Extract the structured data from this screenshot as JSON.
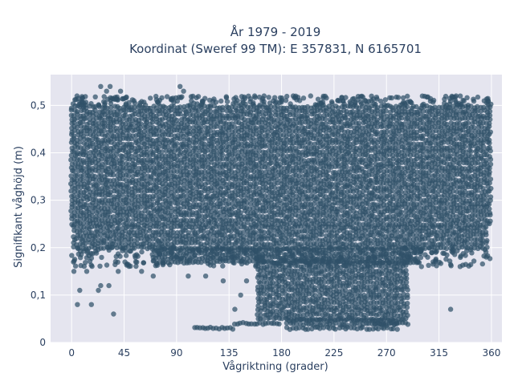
{
  "chart_data": {
    "type": "scatter",
    "title_lines": [
      "År 1979 - 2019",
      "Koordinat (Sweref 99 TM): E 357831, N 6165701"
    ],
    "xlabel": "Vågriktning (grader)",
    "ylabel": "Signifikant våghöjd (m)",
    "xlim": [
      -18,
      369
    ],
    "ylim": [
      0,
      0.565
    ],
    "x_ticks": [
      0,
      45,
      90,
      135,
      180,
      225,
      270,
      315,
      360
    ],
    "x_tick_labels": [
      "0",
      "45",
      "90",
      "135",
      "180",
      "225",
      "270",
      "315",
      "360"
    ],
    "y_ticks": [
      0,
      0.1,
      0.2,
      0.3,
      0.4,
      0.5
    ],
    "y_tick_labels": [
      "0",
      "0,1",
      "0,2",
      "0,3",
      "0,4",
      "0,5"
    ],
    "grid": true,
    "marker_color": "#2f5168",
    "plot_background": "#e5e5ef",
    "dense_regions": [
      {
        "x": [
          0,
          360
        ],
        "y": [
          0.25,
          0.5
        ]
      },
      {
        "x": [
          2,
          358
        ],
        "y": [
          0.2,
          0.25
        ]
      },
      {
        "x": [
          70,
          300
        ],
        "y": [
          0.17,
          0.2
        ]
      },
      {
        "x": [
          160,
          290
        ],
        "y": [
          0.05,
          0.17
        ]
      },
      {
        "x": [
          185,
          280
        ],
        "y": [
          0.03,
          0.05
        ]
      }
    ],
    "outliers": [
      {
        "x": 5,
        "y": 0.08
      },
      {
        "x": 7,
        "y": 0.11
      },
      {
        "x": 17,
        "y": 0.08
      },
      {
        "x": 23,
        "y": 0.11
      },
      {
        "x": 25,
        "y": 0.12
      },
      {
        "x": 32,
        "y": 0.12
      },
      {
        "x": 36,
        "y": 0.06
      },
      {
        "x": 40,
        "y": 0.15
      },
      {
        "x": 13,
        "y": 0.15
      },
      {
        "x": 2,
        "y": 0.15
      },
      {
        "x": 25,
        "y": 0.54
      },
      {
        "x": 33,
        "y": 0.54
      },
      {
        "x": 42,
        "y": 0.53
      },
      {
        "x": 93,
        "y": 0.54
      },
      {
        "x": 96,
        "y": 0.53
      },
      {
        "x": 157,
        "y": 0.52
      },
      {
        "x": 165,
        "y": 0.52
      },
      {
        "x": 190,
        "y": 0.52
      },
      {
        "x": 205,
        "y": 0.52
      },
      {
        "x": 30,
        "y": 0.53
      },
      {
        "x": 325,
        "y": 0.07
      },
      {
        "x": 100,
        "y": 0.14
      },
      {
        "x": 115,
        "y": 0.14
      },
      {
        "x": 130,
        "y": 0.13
      },
      {
        "x": 150,
        "y": 0.13
      },
      {
        "x": 140,
        "y": 0.07
      },
      {
        "x": 145,
        "y": 0.1
      },
      {
        "x": 300,
        "y": 0.16
      },
      {
        "x": 310,
        "y": 0.17
      },
      {
        "x": 60,
        "y": 0.15
      },
      {
        "x": 70,
        "y": 0.14
      },
      {
        "x": 55,
        "y": 0.17
      }
    ],
    "strips": [
      {
        "x": [
          105,
          140
        ],
        "y": 0.03
      },
      {
        "x": [
          140,
          180
        ],
        "y": 0.04
      },
      {
        "x": [
          260,
          290
        ],
        "y": 0.04
      }
    ]
  }
}
